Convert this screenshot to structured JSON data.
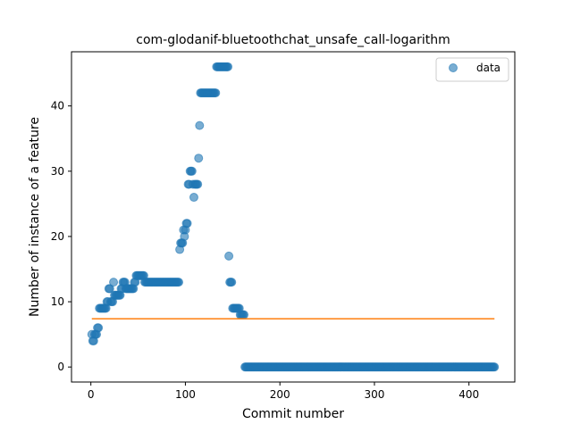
{
  "chart_data": {
    "type": "scatter",
    "title": "com-glodanif-bluetoothchat_unsafe_call-logarithm",
    "xlabel": "Commit number",
    "ylabel": "Number of instance of a feature",
    "xlim": [
      -20.5,
      448.5
    ],
    "ylim": [
      -2.3,
      48.3
    ],
    "xticks": [
      0,
      100,
      200,
      300,
      400
    ],
    "yticks": [
      0,
      10,
      20,
      30,
      40
    ],
    "legend": {
      "position": "top-right",
      "entries": [
        "data"
      ]
    },
    "grid": false,
    "series": [
      {
        "name": "data",
        "kind": "scatter",
        "color": "#1f77b4",
        "segments": [
          {
            "x0": 1,
            "x1": 1,
            "y": 5
          },
          {
            "x0": 2,
            "x1": 3,
            "y": 4
          },
          {
            "x0": 4,
            "x1": 6,
            "y": 5
          },
          {
            "x0": 7,
            "x1": 8,
            "y": 6
          },
          {
            "x0": 9,
            "x1": 16,
            "y": 9
          },
          {
            "x0": 17,
            "x1": 18,
            "y": 10
          },
          {
            "x0": 19,
            "x1": 20,
            "y": 12
          },
          {
            "x0": 21,
            "x1": 23,
            "y": 10
          },
          {
            "x0": 24,
            "x1": 24,
            "y": 13
          },
          {
            "x0": 25,
            "x1": 31,
            "y": 11
          },
          {
            "x0": 32,
            "x1": 33,
            "y": 12
          },
          {
            "x0": 34,
            "x1": 36,
            "y": 13
          },
          {
            "x0": 37,
            "x1": 45,
            "y": 12
          },
          {
            "x0": 46,
            "x1": 47,
            "y": 13
          },
          {
            "x0": 48,
            "x1": 56,
            "y": 14
          },
          {
            "x0": 57,
            "x1": 93,
            "y": 13
          },
          {
            "x0": 94,
            "x1": 94,
            "y": 18
          },
          {
            "x0": 95,
            "x1": 97,
            "y": 19
          },
          {
            "x0": 98,
            "x1": 98,
            "y": 21
          },
          {
            "x0": 99,
            "x1": 99,
            "y": 20
          },
          {
            "x0": 100,
            "x1": 100,
            "y": 21
          },
          {
            "x0": 101,
            "x1": 102,
            "y": 22
          },
          {
            "x0": 103,
            "x1": 104,
            "y": 28
          },
          {
            "x0": 105,
            "x1": 107,
            "y": 30
          },
          {
            "x0": 108,
            "x1": 108,
            "y": 28
          },
          {
            "x0": 109,
            "x1": 109,
            "y": 26
          },
          {
            "x0": 110,
            "x1": 113,
            "y": 28
          },
          {
            "x0": 114,
            "x1": 114,
            "y": 32
          },
          {
            "x0": 115,
            "x1": 115,
            "y": 37
          },
          {
            "x0": 116,
            "x1": 132,
            "y": 42
          },
          {
            "x0": 133,
            "x1": 145,
            "y": 46
          },
          {
            "x0": 146,
            "x1": 146,
            "y": 17
          },
          {
            "x0": 147,
            "x1": 149,
            "y": 13
          },
          {
            "x0": 150,
            "x1": 157,
            "y": 9
          },
          {
            "x0": 158,
            "x1": 162,
            "y": 8
          },
          {
            "x0": 163,
            "x1": 427,
            "y": 0
          }
        ]
      },
      {
        "name": "",
        "kind": "line",
        "color": "#ff7f0e",
        "points": [
          [
            1,
            7.4
          ],
          [
            427,
            7.4
          ]
        ]
      }
    ]
  }
}
